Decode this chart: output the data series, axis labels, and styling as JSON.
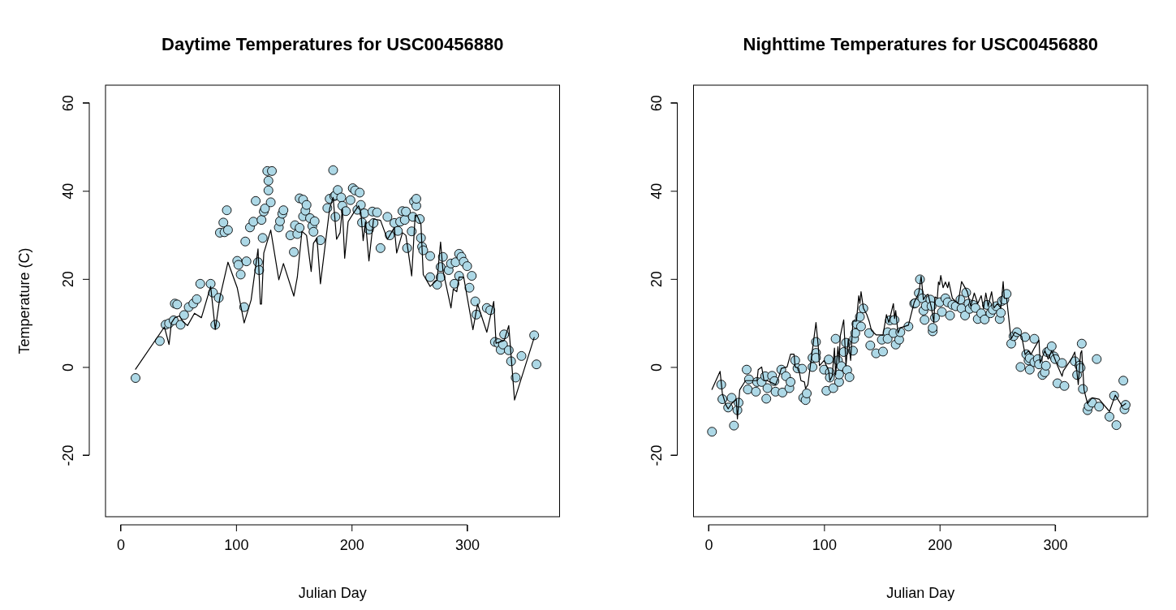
{
  "chart_data": [
    {
      "type": "scatter",
      "title": "Daytime Temperatures for USC00456880",
      "xlabel": "Julian Day",
      "ylabel": "Temperature (C)",
      "xlim": [
        -13,
        380
      ],
      "xticks": [
        0,
        100,
        200,
        300
      ],
      "ylim": [
        -34,
        64
      ],
      "yticks": [
        -20,
        0,
        20,
        40,
        60
      ],
      "grid": false,
      "line_style": "solid",
      "series": [
        {
          "marker": "circle",
          "color": "#add8e6",
          "x": [
            13,
            34,
            39,
            42,
            46,
            47,
            49,
            52,
            55,
            59,
            63,
            66,
            69,
            78,
            80,
            82,
            85,
            86,
            89,
            90,
            92,
            93,
            101,
            102,
            104,
            107,
            108,
            109,
            112,
            115,
            117,
            119,
            120,
            122,
            123,
            124,
            125,
            127,
            128,
            128,
            130,
            131,
            137,
            138,
            140,
            141,
            147,
            150,
            151,
            153,
            155,
            155,
            158,
            158,
            160,
            161,
            164,
            166,
            167,
            168,
            173,
            179,
            181,
            184,
            185,
            186,
            186,
            188,
            191,
            192,
            195,
            199,
            201,
            203,
            205,
            207,
            208,
            209,
            211,
            215,
            216,
            218,
            219,
            222,
            225,
            231,
            233,
            237,
            240,
            242,
            244,
            246,
            247,
            248,
            252,
            253,
            254,
            256,
            256,
            259,
            260,
            261,
            262,
            268,
            268,
            274,
            277,
            277,
            279,
            284,
            286,
            289,
            290,
            293,
            293,
            295,
            297,
            300,
            302,
            304,
            307,
            308,
            317,
            320,
            324,
            327,
            329,
            331,
            332,
            336,
            338,
            342,
            347,
            358,
            360
          ],
          "values": [
            -2.5,
            5.9,
            9.6,
            9.9,
            10.6,
            14.4,
            14.2,
            9.6,
            11.8,
            13.6,
            14.4,
            15.4,
            18.9,
            18.9,
            16.9,
            9.6,
            15.7,
            30.5,
            32.8,
            30.6,
            35.6,
            31.1,
            24.1,
            23.2,
            21,
            13.6,
            28.5,
            24,
            31.7,
            33,
            37.7,
            23.8,
            22,
            33.4,
            29.3,
            35.3,
            36,
            44.5,
            40.1,
            42.3,
            37.4,
            44.5,
            31.7,
            33.1,
            34.8,
            35.6,
            29.9,
            26.1,
            32.2,
            30.2,
            31.6,
            38.3,
            38,
            34.2,
            35.5,
            36.8,
            33.8,
            32,
            30.7,
            33.1,
            28.8,
            36.1,
            38.2,
            44.7,
            38.8,
            39,
            34.1,
            40.2,
            38.5,
            36.6,
            35.4,
            37.9,
            40.6,
            40.1,
            35.7,
            39.6,
            36.8,
            32.8,
            34.9,
            31.2,
            32,
            35.3,
            32.7,
            35.1,
            27,
            34.1,
            29.9,
            32.7,
            30.9,
            33,
            35.4,
            33.4,
            35.3,
            27,
            30.8,
            34.1,
            37.6,
            36.6,
            38.2,
            33.6,
            29.3,
            27.3,
            26.5,
            25.2,
            20.4,
            18.7,
            20.4,
            22.7,
            25,
            22,
            23.5,
            18.9,
            23.8,
            20.7,
            25.7,
            25,
            23.9,
            22.9,
            18,
            20.7,
            14.9,
            11.9,
            13.4,
            12.9,
            5.7,
            5.4,
            3.9,
            5.1,
            7.4,
            3.8,
            1.3,
            -2.4,
            2.5,
            7.2,
            0.6
          ]
        },
        {
          "type": "line",
          "marker": "none",
          "color": "#000000",
          "x": [
            13,
            38,
            42,
            44,
            47,
            51,
            54,
            58,
            64,
            70,
            78,
            82,
            86,
            93,
            101,
            107,
            113,
            119,
            121,
            122,
            124,
            130,
            137,
            141,
            150,
            153,
            157,
            161,
            165,
            167,
            170,
            173,
            181,
            184,
            185,
            187,
            190,
            192,
            194,
            197,
            202,
            206,
            208,
            210,
            212,
            215,
            219,
            225,
            231,
            237,
            239,
            244,
            247,
            252,
            255,
            257,
            260,
            262,
            268,
            274,
            277,
            279,
            283,
            286,
            288,
            291,
            293,
            297,
            305,
            309,
            317,
            323,
            325,
            332,
            336,
            341,
            358
          ],
          "values": [
            -0.5,
            9.1,
            5.1,
            10,
            11.2,
            11.6,
            10.3,
            9.4,
            12.2,
            11.2,
            18.3,
            8.5,
            15.8,
            23.8,
            18,
            10,
            15.2,
            26.8,
            14.3,
            14.3,
            25.9,
            31.1,
            19.8,
            23.5,
            16.1,
            20.4,
            30.8,
            29.9,
            21.7,
            28.1,
            29.3,
            18.9,
            36,
            38.5,
            35.4,
            29,
            30.5,
            36,
            24.7,
            33,
            35.1,
            36.6,
            35.1,
            28.7,
            33,
            24.1,
            33.6,
            33.3,
            29,
            31.7,
            25.9,
            30.5,
            29.9,
            20.7,
            34.5,
            34.2,
            32.4,
            21,
            18.3,
            19.8,
            28.4,
            22,
            17.1,
            13.4,
            17.7,
            17.1,
            20.4,
            20.4,
            8.5,
            14.3,
            7.9,
            14.9,
            5.4,
            6,
            9.4,
            -7.5,
            6.7
          ]
        }
      ]
    },
    {
      "type": "scatter",
      "title": "Nighttime Temperatures for USC00456880",
      "xlabel": "Julian Day",
      "xlim": [
        -13,
        380
      ],
      "xticks": [
        0,
        100,
        200,
        300
      ],
      "ylim": [
        -34,
        64
      ],
      "yticks": [
        -20,
        0,
        20,
        40,
        60
      ],
      "grid": false,
      "line_style": "solid",
      "series": [
        {
          "marker": "circle",
          "color": "#add8e6",
          "x": [
            3,
            11,
            12,
            17,
            20,
            22,
            25,
            26,
            33,
            34,
            35,
            41,
            42,
            46,
            49,
            50,
            51,
            55,
            57,
            58,
            63,
            64,
            67,
            70,
            71,
            75,
            77,
            81,
            82,
            84,
            85,
            90,
            90,
            93,
            93,
            93,
            100,
            102,
            104,
            105,
            105,
            108,
            110,
            112,
            113,
            113,
            115,
            117,
            119,
            120,
            122,
            125,
            126,
            127,
            128,
            131,
            132,
            134,
            139,
            140,
            145,
            150,
            151,
            155,
            155,
            157,
            160,
            161,
            162,
            165,
            166,
            173,
            178,
            179,
            182,
            183,
            185,
            186,
            187,
            188,
            192,
            193,
            194,
            194,
            196,
            200,
            202,
            205,
            207,
            209,
            211,
            214,
            218,
            219,
            222,
            223,
            225,
            226,
            229,
            231,
            233,
            236,
            239,
            241,
            244,
            246,
            249,
            252,
            253,
            254,
            256,
            258,
            262,
            264,
            267,
            270,
            274,
            275,
            277,
            278,
            278,
            282,
            282,
            285,
            286,
            289,
            291,
            292,
            293,
            295,
            297,
            299,
            300,
            302,
            306,
            308,
            317,
            319,
            321,
            322,
            323,
            324,
            328,
            329,
            332,
            336,
            338,
            347,
            351,
            353,
            359,
            360,
            361
          ],
          "values": [
            -14.7,
            -4,
            -7.3,
            -9.2,
            -7,
            -13.3,
            -9.8,
            -8.1,
            -0.6,
            -5.1,
            -2.8,
            -5.6,
            -3.4,
            -3.4,
            -2.1,
            -7.2,
            -4.8,
            -2,
            -3.2,
            -5.6,
            -0.6,
            -5.8,
            -2.1,
            -4.8,
            -3.4,
            1.5,
            -0.3,
            -0.4,
            -7,
            -7.5,
            -6,
            0,
            2.1,
            3.2,
            5.7,
            2.1,
            -0.6,
            -5.4,
            1.7,
            -1.2,
            -2.4,
            -4.8,
            6.4,
            1.5,
            -3.4,
            -1.7,
            0.2,
            3.4,
            5.5,
            -0.7,
            -2.3,
            3.7,
            6.4,
            7.7,
            9.8,
            11.4,
            9.2,
            13.3,
            7.7,
            4.9,
            3.1,
            6.2,
            3.5,
            7.9,
            6.4,
            10.6,
            7.7,
            10.7,
            5.1,
            6.2,
            7.9,
            9.2,
            14.4,
            14.5,
            16.8,
            19.9,
            15.6,
            12.8,
            10.7,
            13.9,
            15.3,
            13.8,
            8.1,
            8.9,
            11.2,
            14.7,
            12.5,
            15.6,
            14.7,
            11.7,
            14.1,
            13.8,
            15.3,
            13.3,
            11.7,
            16.9,
            14.4,
            13.2,
            14.1,
            13.4,
            10.9,
            12.2,
            10.8,
            14.1,
            12.2,
            13,
            13.8,
            10.9,
            12.3,
            15,
            15.3,
            16.6,
            5.3,
            7,
            7.9,
            0,
            6.8,
            2.9,
            1.5,
            -0.6,
            2,
            6.4,
            1.1,
            1.8,
            0.6,
            -1.8,
            -1.2,
            0.3,
            3.4,
            3.7,
            4.7,
            2.4,
            1.8,
            -3.7,
            0.9,
            -4.3,
            1.3,
            -1.8,
            0.3,
            -0.2,
            5.3,
            -5,
            -9.8,
            -8.9,
            -8.1,
            1.8,
            -9,
            -11.3,
            -6.5,
            -13.2,
            -3.1,
            -9.6,
            -8.6
          ]
        },
        {
          "type": "line",
          "marker": "none",
          "color": "#000000",
          "x": [
            3,
            10,
            12,
            15,
            17,
            20,
            24,
            25,
            27,
            32,
            37,
            42,
            43,
            46,
            48,
            51,
            58,
            61,
            63,
            68,
            71,
            74,
            75,
            78,
            80,
            83,
            84,
            86,
            93,
            95,
            96,
            100,
            104,
            105,
            107,
            109,
            110,
            112,
            113,
            114,
            117,
            119,
            121,
            123,
            125,
            128,
            130,
            131,
            132,
            134,
            137,
            139,
            141,
            145,
            151,
            154,
            156,
            160,
            161,
            162,
            164,
            166,
            173,
            178,
            182,
            184,
            186,
            188,
            190,
            193,
            195,
            196,
            198,
            199,
            200,
            201,
            203,
            205,
            207,
            208,
            211,
            216,
            219,
            224,
            227,
            230,
            233,
            236,
            238,
            240,
            242,
            245,
            247,
            250,
            253,
            255,
            256,
            258,
            261,
            262,
            265,
            271,
            274,
            277,
            279,
            282,
            286,
            287,
            291,
            294,
            297,
            302,
            306,
            307,
            314,
            317,
            318,
            320,
            322,
            323,
            325,
            328,
            332,
            338,
            347,
            352,
            358,
            361
          ],
          "values": [
            -5.1,
            -1,
            -6.1,
            -8.6,
            -9.5,
            -8.3,
            -7.3,
            -11.8,
            -5.2,
            -3.1,
            -3.1,
            -3.1,
            -0.6,
            0,
            -3.1,
            -3.1,
            -4,
            -2.1,
            -0.3,
            0,
            2.9,
            2.9,
            0,
            -0.3,
            -3.1,
            -3.4,
            -4.9,
            -4,
            10.1,
            4.6,
            0.3,
            1.5,
            -0.9,
            -3.1,
            -2.1,
            4.3,
            -1.8,
            4.6,
            1.2,
            7,
            10.7,
            0.3,
            6.4,
            1.5,
            10.4,
            10.4,
            16.2,
            14.4,
            17.1,
            13.4,
            11.9,
            10.4,
            8.3,
            7.3,
            7.3,
            11.9,
            10.1,
            14.4,
            11,
            12.8,
            7.7,
            8.9,
            9.5,
            14.7,
            16.8,
            20.6,
            15.3,
            16.2,
            16.5,
            13.4,
            10.1,
            15.9,
            15.6,
            19.3,
            18.7,
            20.8,
            18,
            19.3,
            18,
            19.3,
            15.6,
            14.4,
            19.4,
            17.1,
            13.8,
            16.8,
            14.4,
            16.2,
            13.2,
            16.8,
            13.8,
            17.1,
            13.4,
            14.4,
            13.4,
            19.4,
            15.6,
            15.6,
            8.3,
            6.4,
            7.9,
            7,
            2.8,
            3.7,
            2.8,
            4.3,
            6.1,
            0.9,
            3.7,
            1.8,
            3.7,
            0.3,
            -2.1,
            -0.9,
            1.8,
            3.4,
            0.9,
            -4,
            3.1,
            3.7,
            -5.2,
            -8.3,
            -7,
            -7.3,
            -10.1,
            -6.4,
            -8.9,
            -8.3
          ]
        }
      ]
    }
  ]
}
